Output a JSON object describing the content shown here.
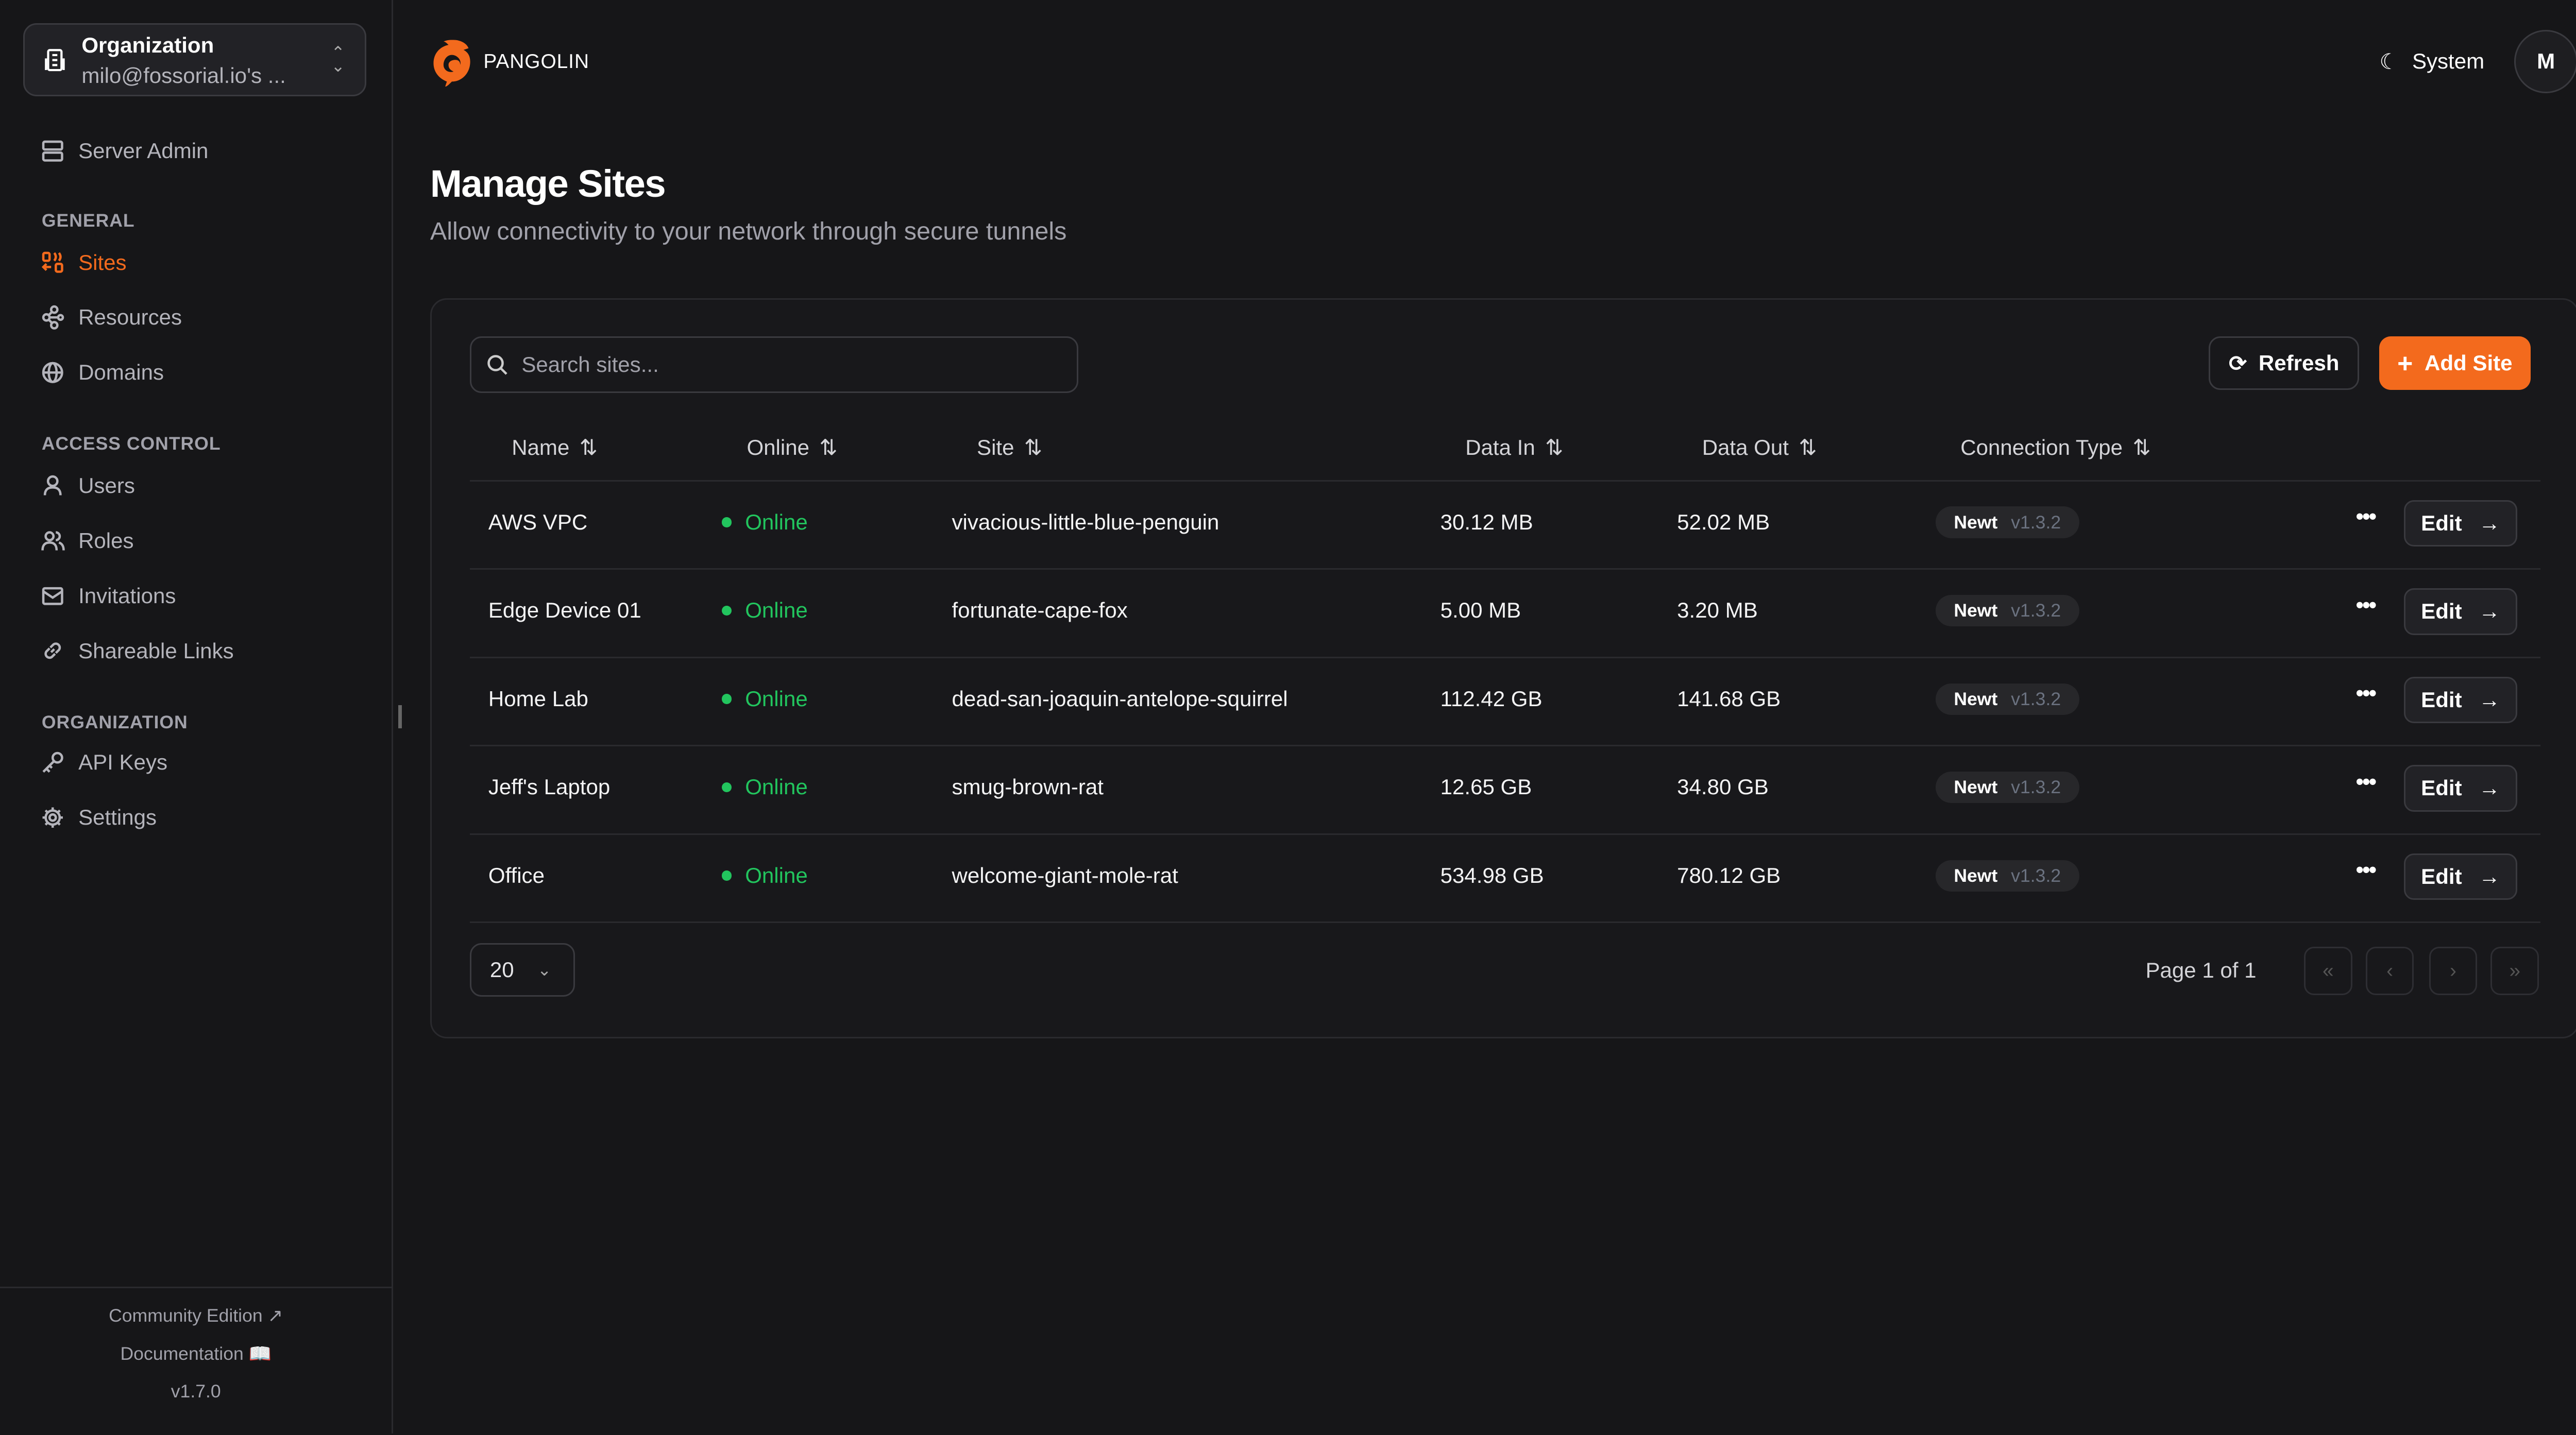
{
  "org": {
    "title": "Organization",
    "subtitle": "milo@fossorial.io's ..."
  },
  "sidebar": {
    "server_admin": "Server Admin",
    "sections": [
      {
        "title": "GENERAL",
        "items": [
          {
            "label": "Sites",
            "icon": "sites-icon",
            "active": true
          },
          {
            "label": "Resources",
            "icon": "resources-icon"
          },
          {
            "label": "Domains",
            "icon": "globe-icon"
          }
        ]
      },
      {
        "title": "ACCESS CONTROL",
        "items": [
          {
            "label": "Users",
            "icon": "user-icon"
          },
          {
            "label": "Roles",
            "icon": "users-icon"
          },
          {
            "label": "Invitations",
            "icon": "mail-icon"
          },
          {
            "label": "Shareable Links",
            "icon": "link-icon"
          }
        ]
      },
      {
        "title": "ORGANIZATION",
        "items": [
          {
            "label": "API Keys",
            "icon": "key-icon"
          },
          {
            "label": "Settings",
            "icon": "gear-icon"
          }
        ]
      }
    ],
    "footer": {
      "community": "Community Edition",
      "docs": "Documentation",
      "version": "v1.7.0"
    }
  },
  "header": {
    "brand": "PANGOLIN",
    "theme": "System",
    "avatar": "M"
  },
  "page": {
    "title": "Manage Sites",
    "subtitle": "Allow connectivity to your network through secure tunnels"
  },
  "toolbar": {
    "search_placeholder": "Search sites...",
    "refresh": "Refresh",
    "add": "Add Site"
  },
  "table": {
    "columns": [
      "Name",
      "Online",
      "Site",
      "Data In",
      "Data Out",
      "Connection Type"
    ],
    "rows": [
      {
        "name": "AWS VPC",
        "online": "Online",
        "site": "vivacious-little-blue-penguin",
        "in": "30.12 MB",
        "out": "52.02 MB",
        "type": "Newt",
        "ver": "v1.3.2"
      },
      {
        "name": "Edge Device 01",
        "online": "Online",
        "site": "fortunate-cape-fox",
        "in": "5.00 MB",
        "out": "3.20 MB",
        "type": "Newt",
        "ver": "v1.3.2"
      },
      {
        "name": "Home Lab",
        "online": "Online",
        "site": "dead-san-joaquin-antelope-squirrel",
        "in": "112.42 GB",
        "out": "141.68 GB",
        "type": "Newt",
        "ver": "v1.3.2"
      },
      {
        "name": "Jeff's Laptop",
        "online": "Online",
        "site": "smug-brown-rat",
        "in": "12.65 GB",
        "out": "34.80 GB",
        "type": "Newt",
        "ver": "v1.3.2"
      },
      {
        "name": "Office",
        "online": "Online",
        "site": "welcome-giant-mole-rat",
        "in": "534.98 GB",
        "out": "780.12 GB",
        "type": "Newt",
        "ver": "v1.3.2"
      }
    ],
    "edit": "Edit"
  },
  "pagination": {
    "page_size": "20",
    "info": "Page 1 of 1"
  },
  "colors": {
    "accent": "#f36a1d",
    "online": "#22c55e",
    "background": "#161618"
  }
}
